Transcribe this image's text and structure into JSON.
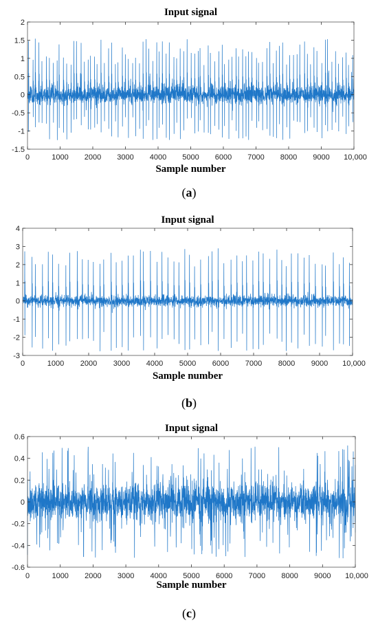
{
  "chart_data": [
    {
      "type": "line",
      "title": "Input signal",
      "xlabel": "Sample number",
      "ylabel": "",
      "caption": "a",
      "xlim": [
        0,
        10000
      ],
      "ylim": [
        -1.5,
        2
      ],
      "xticks": [
        0,
        1000,
        2000,
        3000,
        4000,
        5000,
        6000,
        7000,
        8000,
        9000,
        10000
      ],
      "xtick_labels": [
        "0",
        "1000",
        "2000",
        "3000",
        "4000",
        "5000",
        "6000",
        "7000",
        "8000",
        "9000",
        "10,000"
      ],
      "yticks": [
        -1.5,
        -1,
        -0.5,
        0,
        0.5,
        1,
        1.5,
        2
      ],
      "ytick_labels": [
        "-1.5",
        "-1",
        "-0.5",
        "0",
        "0.5",
        "1",
        "1.5",
        "2"
      ],
      "color": "#1f77c8",
      "grid": false,
      "series": [
        {
          "noise_amplitude": 0.3,
          "peak_height_range": [
            0.8,
            1.55
          ],
          "trough_depth_range": [
            -1.25,
            -0.6
          ],
          "impulse_count": 95
        }
      ]
    },
    {
      "type": "line",
      "title": "Input signal",
      "xlabel": "Sample number",
      "ylabel": "",
      "caption": "b",
      "xlim": [
        0,
        10000
      ],
      "ylim": [
        -3,
        4
      ],
      "xticks": [
        0,
        1000,
        2000,
        3000,
        4000,
        5000,
        6000,
        7000,
        8000,
        9000,
        10000
      ],
      "xtick_labels": [
        "0",
        "1000",
        "2000",
        "3000",
        "4000",
        "5000",
        "6000",
        "7000",
        "8000",
        "9000",
        "10,000"
      ],
      "yticks": [
        -3,
        -2,
        -1,
        0,
        1,
        2,
        3,
        4
      ],
      "ytick_labels": [
        "-3",
        "-2",
        "-1",
        "0",
        "1",
        "2",
        "3",
        "4"
      ],
      "color": "#1f77c8",
      "grid": false,
      "series": [
        {
          "noise_amplitude": 0.35,
          "peak_height_range": [
            1.9,
            2.9
          ],
          "trough_depth_range": [
            -2.8,
            -1.7
          ],
          "impulse_count": 58
        }
      ]
    },
    {
      "type": "line",
      "title": "Input signal",
      "xlabel": "Sample number",
      "ylabel": "",
      "caption": "c",
      "xlim": [
        0,
        10000
      ],
      "ylim": [
        -0.6,
        0.6
      ],
      "xticks": [
        0,
        1000,
        2000,
        3000,
        4000,
        5000,
        6000,
        7000,
        8000,
        9000,
        10000
      ],
      "xtick_labels": [
        "0",
        "1000",
        "2000",
        "3000",
        "4000",
        "5000",
        "6000",
        "7000",
        "8000",
        "9000",
        "10,000"
      ],
      "yticks": [
        -0.6,
        -0.4,
        -0.2,
        0,
        0.2,
        0.4,
        0.6
      ],
      "ytick_labels": [
        "-0.6",
        "-0.4",
        "-0.2",
        "0",
        "0.2",
        "0.4",
        "0.6"
      ],
      "color": "#1f77c8",
      "grid": false,
      "series": [
        {
          "noise_amplitude": 0.2,
          "peak_height_range": [
            0.3,
            0.52
          ],
          "trough_depth_range": [
            -0.52,
            -0.3
          ],
          "impulse_count": 0
        }
      ]
    }
  ],
  "captions": [
    "a",
    "b",
    "c"
  ]
}
